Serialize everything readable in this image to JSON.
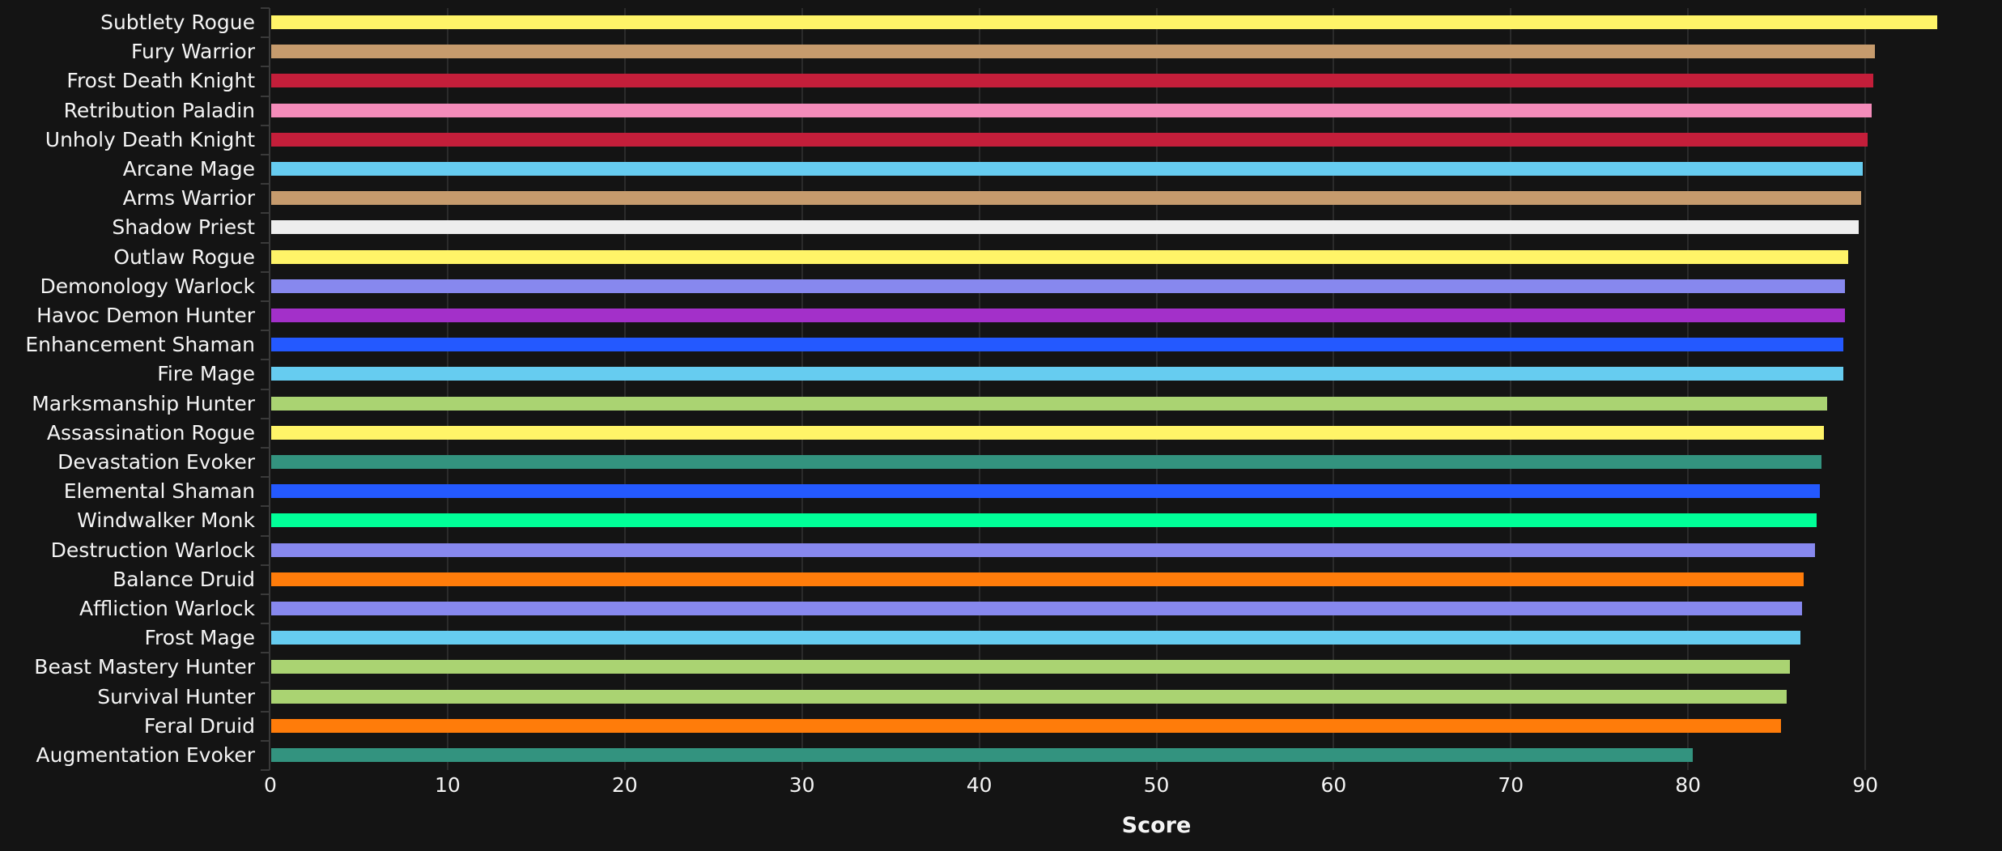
{
  "chart_data": {
    "type": "bar",
    "orientation": "horizontal",
    "title": "",
    "xlabel": "Score",
    "ylabel": "",
    "xlim": [
      0,
      95
    ],
    "xticks": [
      0,
      10,
      20,
      30,
      40,
      50,
      60,
      70,
      80,
      90
    ],
    "grid": true,
    "legend": null,
    "categories": [
      "Subtlety Rogue",
      "Fury Warrior",
      "Frost Death Knight",
      "Retribution Paladin",
      "Unholy Death Knight",
      "Arcane Mage",
      "Arms Warrior",
      "Shadow Priest",
      "Outlaw Rogue",
      "Demonology Warlock",
      "Havoc Demon Hunter",
      "Enhancement Shaman",
      "Fire Mage",
      "Marksmanship Hunter",
      "Assassination Rogue",
      "Devastation Evoker",
      "Elemental Shaman",
      "Windwalker Monk",
      "Destruction Warlock",
      "Balance Druid",
      "Affliction Warlock",
      "Frost Mage",
      "Beast Mastery Hunter",
      "Survival Hunter",
      "Feral Druid",
      "Augmentation Evoker"
    ],
    "values": [
      94.0,
      90.5,
      90.4,
      90.3,
      90.1,
      89.8,
      89.7,
      89.6,
      89.0,
      88.8,
      88.8,
      88.7,
      88.7,
      87.8,
      87.6,
      87.5,
      87.4,
      87.2,
      87.1,
      86.5,
      86.4,
      86.3,
      85.7,
      85.5,
      85.2,
      80.2
    ],
    "colors": [
      "#FFF468",
      "#C69B6D",
      "#C41E3A",
      "#F48CBA",
      "#C41E3A",
      "#66CCF0",
      "#C69B6D",
      "#EDEDED",
      "#FFF468",
      "#8788EE",
      "#A330C9",
      "#2459FF",
      "#66CCF0",
      "#AAD372",
      "#FFF468",
      "#33937F",
      "#2459FF",
      "#00FF98",
      "#8788EE",
      "#FF7C0A",
      "#8788EE",
      "#66CCF0",
      "#AAD372",
      "#AAD372",
      "#FF7C0A",
      "#33937F"
    ]
  },
  "axis": {
    "x_label": "Score",
    "tick_labels": [
      "0",
      "10",
      "20",
      "30",
      "40",
      "50",
      "60",
      "70",
      "80",
      "90"
    ]
  },
  "theme": {
    "background": "#141414",
    "gridline": "#2b2b2b",
    "text": "#f4f4f4"
  }
}
